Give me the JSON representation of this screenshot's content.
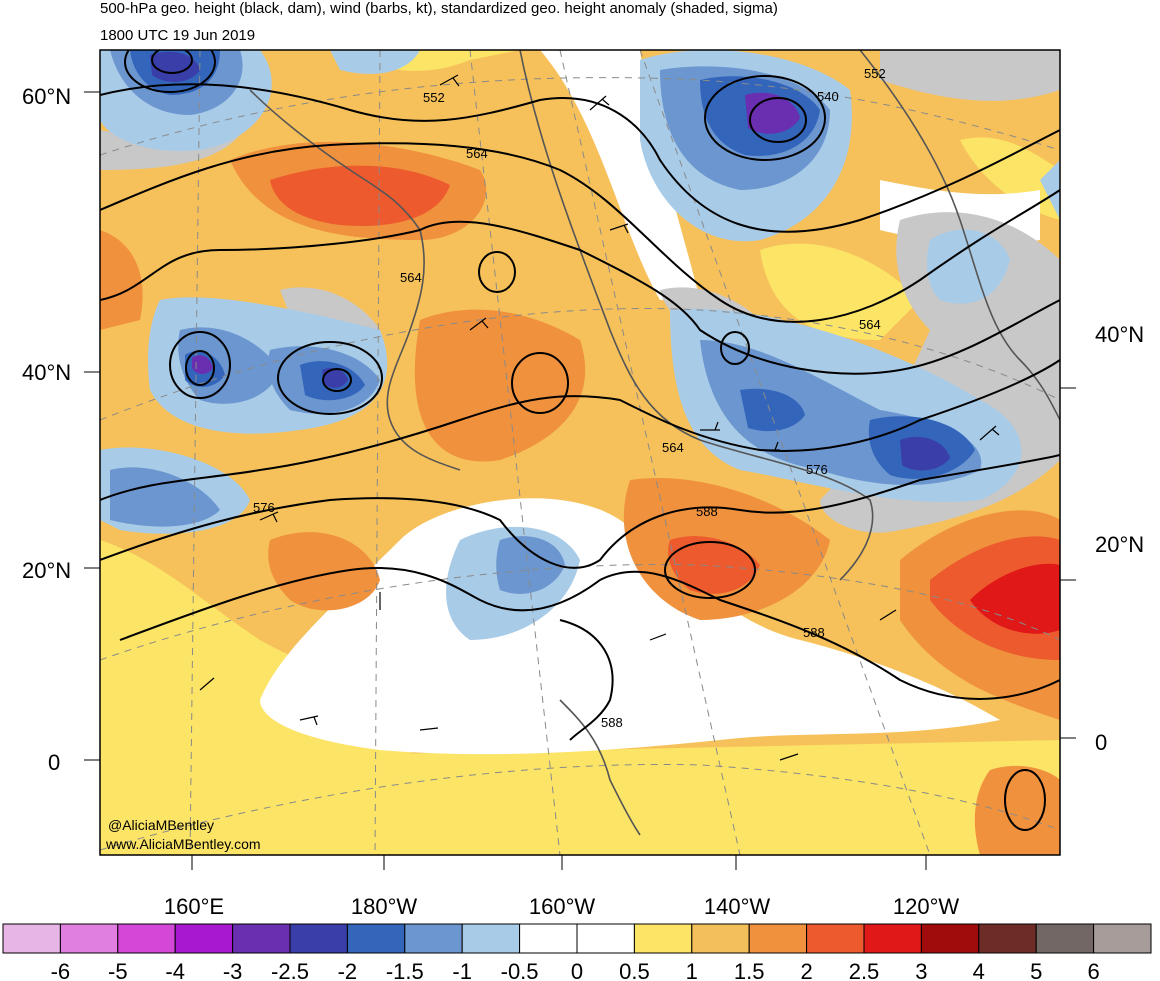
{
  "header": {
    "title": "500-hPa geo. height (black, dam), wind (barbs, kt), standardized geo. height anomaly (shaded, sigma)",
    "valid_time": "1800 UTC 19 Jun 2019"
  },
  "map": {
    "lat_labels_left": [
      "60°N",
      "40°N",
      "20°N",
      "0"
    ],
    "lat_labels_right": [
      "40°N",
      "20°N",
      "0"
    ],
    "lon_labels_bottom": [
      "160°E",
      "180°W",
      "160°W",
      "140°W",
      "120°W"
    ],
    "contour_labels": [
      "552",
      "564",
      "552",
      "540",
      "564",
      "564",
      "564",
      "576",
      "576",
      "588",
      "588",
      "588"
    ],
    "credit": [
      "@AliciaMBentley",
      "www.AliciaMBentley.com"
    ]
  },
  "colorbar": {
    "labels": [
      "-6",
      "-5",
      "-4",
      "-3",
      "-2.5",
      "-2",
      "-1.5",
      "-1",
      "-0.5",
      "0",
      "0.5",
      "1",
      "1.5",
      "2",
      "2.5",
      "3",
      "4",
      "5",
      "6"
    ],
    "colors": [
      "#e8b6e6",
      "#e07fe0",
      "#d448d8",
      "#a818cf",
      "#6a2eb0",
      "#3a3ea8",
      "#3366bb",
      "#6b96cf",
      "#a8cbe8",
      "#ffffff",
      "#ffffff",
      "#fbe466",
      "#f3bf5a",
      "#f0913d",
      "#ec5a2e",
      "#e01818",
      "#a00c0c",
      "#6e2c26",
      "#736766",
      "#a89c9b"
    ]
  }
}
